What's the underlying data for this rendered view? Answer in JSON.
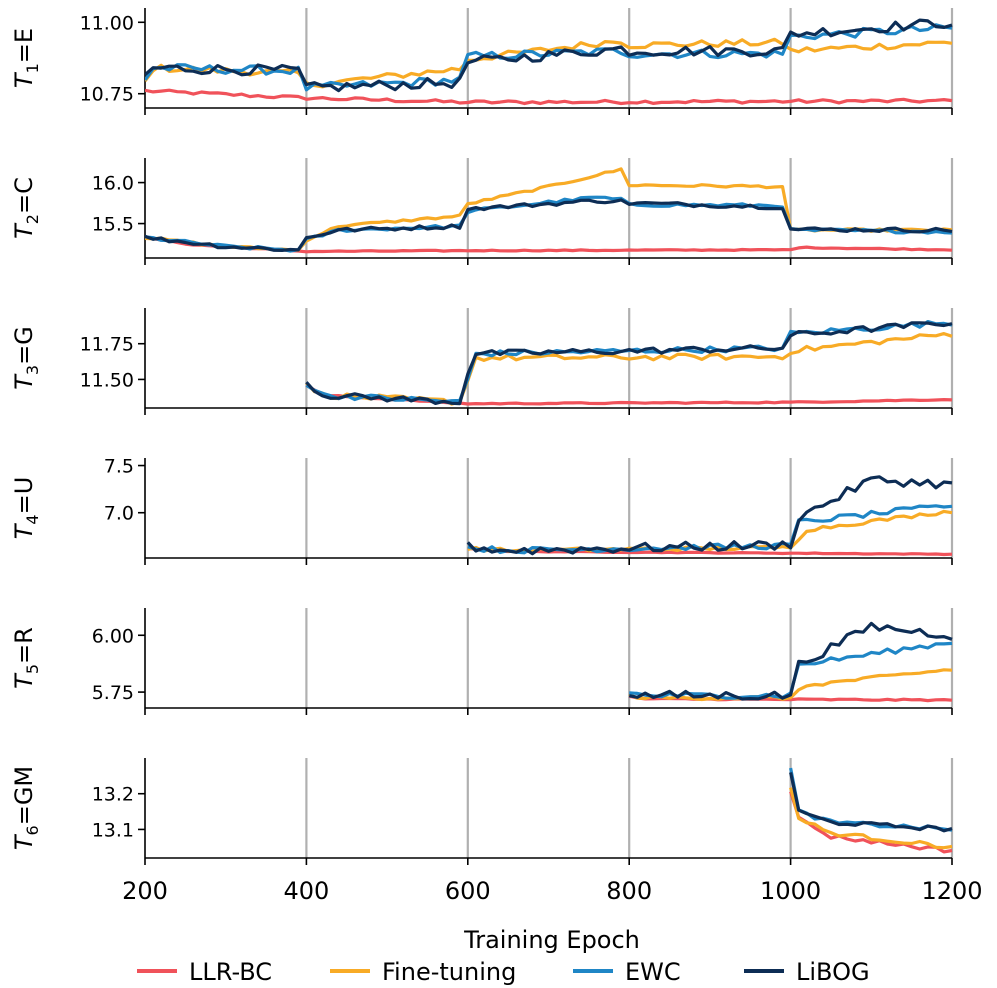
{
  "chart_data": {
    "type": "line",
    "xlabel": "Training Epoch",
    "xlim": [
      200,
      1200
    ],
    "x_ticks": [
      "200",
      "400",
      "600",
      "800",
      "1000",
      "1200"
    ],
    "task_boundaries": [
      400,
      600,
      800,
      1000,
      1200
    ],
    "legend": [
      "LLR-BC",
      "Fine-tuning",
      "EWC",
      "LiBOG"
    ],
    "legend_position": "bottom",
    "colors": {
      "LLR-BC": "#f0525a",
      "Fine-tuning": "#f8ab26",
      "EWC": "#1f86c6",
      "LiBOG": "#0d2d55"
    },
    "panels": [
      {
        "ylabel_main": "T",
        "ylabel_sub": "1",
        "ylabel_rest": "=E",
        "ylim": [
          10.7,
          11.05
        ],
        "y_ticks": [
          {
            "value": 10.75,
            "label": "10.75"
          },
          {
            "value": 11.0,
            "label": "11.00"
          }
        ],
        "start_epoch": 200,
        "series": [
          {
            "name": "LLR-BC",
            "anchors": [
              [
                200,
                10.76
              ],
              [
                400,
                10.735
              ],
              [
                600,
                10.72
              ],
              [
                1200,
                10.725
              ]
            ],
            "noise": 0.006
          },
          {
            "name": "Fine-tuning",
            "anchors": [
              [
                200,
                10.79
              ],
              [
                210,
                10.84
              ],
              [
                399,
                10.82
              ],
              [
                400,
                10.78
              ],
              [
                599,
                10.84
              ],
              [
                600,
                10.87
              ],
              [
                799,
                10.94
              ],
              [
                800,
                10.92
              ],
              [
                999,
                10.93
              ],
              [
                1000,
                10.9
              ],
              [
                1200,
                10.93
              ]
            ],
            "noise": 0.012
          },
          {
            "name": "EWC",
            "anchors": [
              [
                200,
                10.8
              ],
              [
                210,
                10.84
              ],
              [
                399,
                10.83
              ],
              [
                400,
                10.77
              ],
              [
                599,
                10.8
              ],
              [
                600,
                10.88
              ],
              [
                799,
                10.9
              ],
              [
                800,
                10.89
              ],
              [
                999,
                10.89
              ],
              [
                1000,
                10.95
              ],
              [
                1200,
                10.98
              ]
            ],
            "noise": 0.015
          },
          {
            "name": "LiBOG",
            "anchors": [
              [
                200,
                10.81
              ],
              [
                210,
                10.84
              ],
              [
                399,
                10.83
              ],
              [
                400,
                10.77
              ],
              [
                599,
                10.79
              ],
              [
                600,
                10.86
              ],
              [
                799,
                10.91
              ],
              [
                800,
                10.9
              ],
              [
                999,
                10.9
              ],
              [
                1000,
                10.96
              ],
              [
                1200,
                11.0
              ]
            ],
            "noise": 0.018
          }
        ]
      },
      {
        "ylabel_main": "T",
        "ylabel_sub": "2",
        "ylabel_rest": "=C",
        "ylim": [
          15.08,
          16.3
        ],
        "y_ticks": [
          {
            "value": 15.5,
            "label": "15.5"
          },
          {
            "value": 16.0,
            "label": "16.0"
          }
        ],
        "start_epoch": 200,
        "series": [
          {
            "name": "LLR-BC",
            "anchors": [
              [
                200,
                15.33
              ],
              [
                260,
                15.24
              ],
              [
                399,
                15.16
              ],
              [
                400,
                15.16
              ],
              [
                599,
                15.17
              ],
              [
                600,
                15.17
              ],
              [
                1000,
                15.18
              ],
              [
                1001,
                15.21
              ],
              [
                1200,
                15.18
              ]
            ],
            "noise": 0.006
          },
          {
            "name": "Fine-tuning",
            "anchors": [
              [
                200,
                15.33
              ],
              [
                300,
                15.22
              ],
              [
                399,
                15.17
              ],
              [
                400,
                15.3
              ],
              [
                440,
                15.47
              ],
              [
                599,
                15.6
              ],
              [
                600,
                15.74
              ],
              [
                700,
                15.95
              ],
              [
                798,
                16.18
              ],
              [
                800,
                15.97
              ],
              [
                999,
                15.95
              ],
              [
                1000,
                15.42
              ],
              [
                1200,
                15.42
              ]
            ],
            "noise": 0.015
          },
          {
            "name": "EWC",
            "anchors": [
              [
                200,
                15.33
              ],
              [
                300,
                15.22
              ],
              [
                399,
                15.17
              ],
              [
                400,
                15.3
              ],
              [
                440,
                15.42
              ],
              [
                599,
                15.47
              ],
              [
                600,
                15.65
              ],
              [
                700,
                15.76
              ],
              [
                760,
                15.82
              ],
              [
                799,
                15.78
              ],
              [
                800,
                15.73
              ],
              [
                999,
                15.72
              ],
              [
                1000,
                15.42
              ],
              [
                1200,
                15.4
              ]
            ],
            "noise": 0.02
          },
          {
            "name": "LiBOG",
            "anchors": [
              [
                200,
                15.33
              ],
              [
                300,
                15.22
              ],
              [
                399,
                15.17
              ],
              [
                400,
                15.33
              ],
              [
                440,
                15.42
              ],
              [
                599,
                15.47
              ],
              [
                600,
                15.68
              ],
              [
                700,
                15.74
              ],
              [
                760,
                15.78
              ],
              [
                799,
                15.77
              ],
              [
                800,
                15.75
              ],
              [
                999,
                15.7
              ],
              [
                1000,
                15.43
              ],
              [
                1200,
                15.42
              ]
            ],
            "noise": 0.025
          }
        ]
      },
      {
        "ylabel_main": "T",
        "ylabel_sub": "3",
        "ylabel_rest": "=G",
        "ylim": [
          11.3,
          12.0
        ],
        "y_ticks": [
          {
            "value": 11.5,
            "label": "11.50"
          },
          {
            "value": 11.75,
            "label": "11.75"
          }
        ],
        "start_epoch": 400,
        "series": [
          {
            "name": "LLR-BC",
            "anchors": [
              [
                400,
                11.46
              ],
              [
                420,
                11.39
              ],
              [
                599,
                11.33
              ],
              [
                1000,
                11.34
              ],
              [
                1200,
                11.36
              ]
            ],
            "noise": 0.004
          },
          {
            "name": "Fine-tuning",
            "anchors": [
              [
                400,
                11.46
              ],
              [
                420,
                11.39
              ],
              [
                599,
                11.34
              ],
              [
                600,
                11.5
              ],
              [
                610,
                11.65
              ],
              [
                999,
                11.66
              ],
              [
                1000,
                11.7
              ],
              [
                1200,
                11.82
              ]
            ],
            "noise": 0.02
          },
          {
            "name": "EWC",
            "anchors": [
              [
                400,
                11.47
              ],
              [
                420,
                11.39
              ],
              [
                599,
                11.34
              ],
              [
                600,
                11.5
              ],
              [
                610,
                11.68
              ],
              [
                999,
                11.72
              ],
              [
                1000,
                11.82
              ],
              [
                1200,
                11.9
              ]
            ],
            "noise": 0.02
          },
          {
            "name": "LiBOG",
            "anchors": [
              [
                400,
                11.48
              ],
              [
                420,
                11.39
              ],
              [
                599,
                11.34
              ],
              [
                600,
                11.55
              ],
              [
                610,
                11.68
              ],
              [
                999,
                11.72
              ],
              [
                1000,
                11.81
              ],
              [
                1200,
                11.9
              ]
            ],
            "noise": 0.022
          }
        ]
      },
      {
        "ylabel_main": "T",
        "ylabel_sub": "4",
        "ylabel_rest": "=U",
        "ylim": [
          6.52,
          7.58
        ],
        "y_ticks": [
          {
            "value": 7.0,
            "label": "7.0"
          },
          {
            "value": 7.5,
            "label": "7.5"
          }
        ],
        "start_epoch": 600,
        "series": [
          {
            "name": "LLR-BC",
            "anchors": [
              [
                600,
                6.62
              ],
              [
                650,
                6.59
              ],
              [
                1200,
                6.56
              ]
            ],
            "noise": 0.004
          },
          {
            "name": "Fine-tuning",
            "anchors": [
              [
                600,
                6.62
              ],
              [
                650,
                6.6
              ],
              [
                999,
                6.63
              ],
              [
                1000,
                6.64
              ],
              [
                1020,
                6.82
              ],
              [
                1200,
                7.02
              ]
            ],
            "noise": 0.02
          },
          {
            "name": "EWC",
            "anchors": [
              [
                600,
                6.63
              ],
              [
                650,
                6.6
              ],
              [
                999,
                6.65
              ],
              [
                1000,
                6.66
              ],
              [
                1010,
                6.9
              ],
              [
                1200,
                7.08
              ]
            ],
            "noise": 0.03
          },
          {
            "name": "LiBOG",
            "anchors": [
              [
                600,
                6.64
              ],
              [
                650,
                6.6
              ],
              [
                999,
                6.66
              ],
              [
                1000,
                6.67
              ],
              [
                1010,
                6.95
              ],
              [
                1100,
                7.35
              ],
              [
                1200,
                7.3
              ]
            ],
            "noise": 0.05
          }
        ]
      },
      {
        "ylabel_main": "T",
        "ylabel_sub": "5",
        "ylabel_rest": "=R",
        "ylim": [
          5.68,
          6.12
        ],
        "y_ticks": [
          {
            "value": 5.75,
            "label": "5.75"
          },
          {
            "value": 6.0,
            "label": "6.00"
          }
        ],
        "start_epoch": 800,
        "series": [
          {
            "name": "LLR-BC",
            "anchors": [
              [
                800,
                5.73
              ],
              [
                820,
                5.72
              ],
              [
                1200,
                5.715
              ]
            ],
            "noise": 0.003
          },
          {
            "name": "Fine-tuning",
            "anchors": [
              [
                800,
                5.735
              ],
              [
                820,
                5.725
              ],
              [
                999,
                5.725
              ],
              [
                1000,
                5.725
              ],
              [
                1020,
                5.78
              ],
              [
                1200,
                5.85
              ]
            ],
            "noise": 0.008
          },
          {
            "name": "EWC",
            "anchors": [
              [
                800,
                5.745
              ],
              [
                820,
                5.735
              ],
              [
                999,
                5.735
              ],
              [
                1000,
                5.74
              ],
              [
                1010,
                5.87
              ],
              [
                1200,
                5.97
              ]
            ],
            "noise": 0.012
          },
          {
            "name": "LiBOG",
            "anchors": [
              [
                800,
                5.745
              ],
              [
                820,
                5.735
              ],
              [
                999,
                5.735
              ],
              [
                1000,
                5.74
              ],
              [
                1010,
                5.87
              ],
              [
                1100,
                6.04
              ],
              [
                1200,
                6.0
              ]
            ],
            "noise": 0.02
          }
        ]
      },
      {
        "ylabel_main": "T",
        "ylabel_sub": "6",
        "ylabel_rest": "=GM",
        "ylim": [
          13.02,
          13.3
        ],
        "y_ticks": [
          {
            "value": 13.1,
            "label": "13.1"
          },
          {
            "value": 13.2,
            "label": "13.2"
          }
        ],
        "start_epoch": 1000,
        "series": [
          {
            "name": "LLR-BC",
            "anchors": [
              [
                1000,
                13.21
              ],
              [
                1010,
                13.13
              ],
              [
                1050,
                13.08
              ],
              [
                1200,
                13.04
              ]
            ],
            "noise": 0.006
          },
          {
            "name": "Fine-tuning",
            "anchors": [
              [
                1000,
                13.22
              ],
              [
                1010,
                13.13
              ],
              [
                1050,
                13.09
              ],
              [
                1200,
                13.05
              ]
            ],
            "noise": 0.006
          },
          {
            "name": "EWC",
            "anchors": [
              [
                1000,
                13.27
              ],
              [
                1010,
                13.15
              ],
              [
                1050,
                13.12
              ],
              [
                1200,
                13.1
              ]
            ],
            "noise": 0.006
          },
          {
            "name": "LiBOG",
            "anchors": [
              [
                1000,
                13.26
              ],
              [
                1010,
                13.15
              ],
              [
                1050,
                13.12
              ],
              [
                1200,
                13.1
              ]
            ],
            "noise": 0.006
          }
        ]
      }
    ]
  }
}
